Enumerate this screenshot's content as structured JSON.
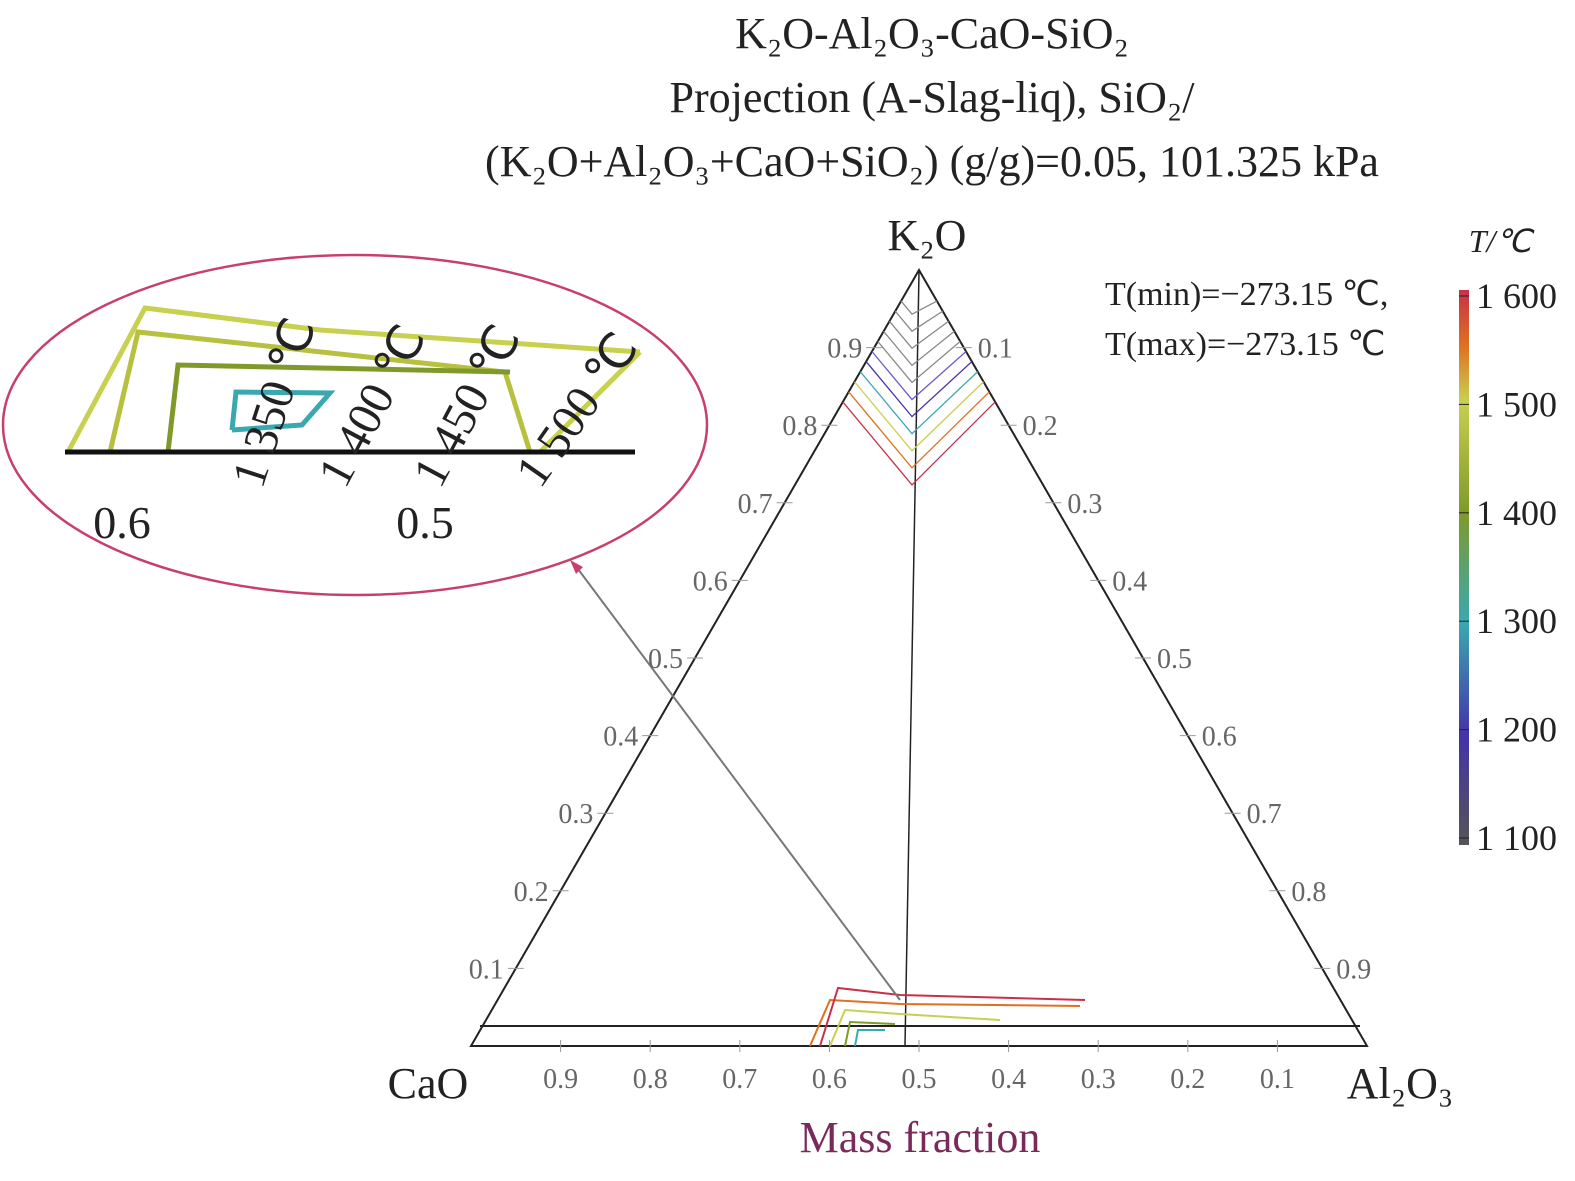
{
  "chart_data": {
    "type": "ternary",
    "title": [
      "K₂O-Al₂O₃-CaO-SiO₂",
      "Projection (A-Slag-liq), SiO₂/",
      "(K₂O+Al₂O₃+CaO+SiO₂) (g/g)=0.05, 101.325 kPa"
    ],
    "apex_labels": {
      "top": "K₂O",
      "left": "CaO",
      "right": "Al₂O₃"
    },
    "xlabel": "Mass fraction",
    "left_ticks": [
      0.1,
      0.2,
      0.3,
      0.4,
      0.5,
      0.6,
      0.7,
      0.8,
      0.9
    ],
    "right_ticks": [
      0.1,
      0.2,
      0.3,
      0.4,
      0.5,
      0.6,
      0.7,
      0.8,
      0.9
    ],
    "bottom_ticks": [
      0.1,
      0.2,
      0.3,
      0.4,
      0.5,
      0.6,
      0.7,
      0.8,
      0.9
    ],
    "annotations": [
      "T(min)=−273.15 ℃,",
      "T(max)=−273.15 ℃"
    ],
    "colorbar": {
      "label": "T/℃",
      "lim": [
        1100,
        1600
      ],
      "ticks": [
        {
          "value": 1100,
          "label": "1 100"
        },
        {
          "value": 1200,
          "label": "1 200"
        },
        {
          "value": 1300,
          "label": "1 300"
        },
        {
          "value": 1400,
          "label": "1 400"
        },
        {
          "value": 1500,
          "label": "1 500"
        },
        {
          "value": 1600,
          "label": "1 600"
        }
      ]
    },
    "inset": {
      "isotherm_labels": [
        "1 350 ℃",
        "1 400 ℃",
        "1 450 ℃",
        "1 500 ℃"
      ],
      "ticks": [
        0.6,
        0.5
      ]
    }
  }
}
